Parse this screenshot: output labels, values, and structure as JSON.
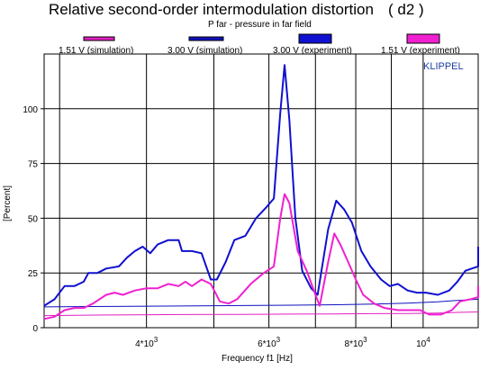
{
  "chart_data": {
    "type": "line",
    "title": "Relative second-order intermodulation distortion",
    "title_tag": "( d2 )",
    "subtitle": "P far - pressure in far field",
    "brand": "KLIPPEL",
    "xlabel": "Frequency f1  [Hz]",
    "ylabel": "[Percent]",
    "x_scale": "log",
    "xlim": [
      2850,
      12000
    ],
    "ylim": [
      0,
      125
    ],
    "grid": true,
    "legend_position": "top",
    "y_ticks": [
      {
        "value": 0,
        "label": "0"
      },
      {
        "value": 25,
        "label": "25"
      },
      {
        "value": 50,
        "label": "50"
      },
      {
        "value": 75,
        "label": "75"
      },
      {
        "value": 100,
        "label": "100"
      }
    ],
    "x_ticks": [
      {
        "value": 4000,
        "label_base": "4*10",
        "label_exp": "3"
      },
      {
        "value": 6000,
        "label_base": "6*10",
        "label_exp": "3"
      },
      {
        "value": 8000,
        "label_base": "8*10",
        "label_exp": "3"
      },
      {
        "value": 10000,
        "label_base": "10",
        "label_exp": "4"
      }
    ],
    "x_gridlines": [
      3000,
      4000,
      5000,
      6000,
      7000,
      8000,
      9000,
      10000
    ],
    "series": [
      {
        "name": "1.51 V  (simulation)",
        "color": "#e020c0",
        "style": "thin",
        "points": [
          [
            2850,
            5.5
          ],
          [
            3500,
            5.8
          ],
          [
            4500,
            6.0
          ],
          [
            5500,
            6.1
          ],
          [
            6500,
            6.2
          ],
          [
            7500,
            6.3
          ],
          [
            8500,
            6.4
          ],
          [
            9500,
            6.5
          ],
          [
            10500,
            6.7
          ],
          [
            11000,
            6.9
          ],
          [
            12000,
            7.2
          ]
        ]
      },
      {
        "name": "3.00 V  (simulation)",
        "color": "#1010c0",
        "style": "thin",
        "points": [
          [
            2850,
            9.5
          ],
          [
            3500,
            9.7
          ],
          [
            4500,
            9.9
          ],
          [
            5500,
            10.1
          ],
          [
            6500,
            10.3
          ],
          [
            7500,
            10.5
          ],
          [
            8500,
            10.8
          ],
          [
            9500,
            11.2
          ],
          [
            10500,
            11.8
          ],
          [
            11000,
            12.3
          ],
          [
            12000,
            13.0
          ]
        ]
      },
      {
        "name": "3.00 V  (experiment)",
        "color": "#1010d0",
        "style": "thick",
        "points": [
          [
            2850,
            10
          ],
          [
            2950,
            13
          ],
          [
            3050,
            19
          ],
          [
            3150,
            19
          ],
          [
            3250,
            21
          ],
          [
            3300,
            25
          ],
          [
            3400,
            25
          ],
          [
            3500,
            27
          ],
          [
            3650,
            28
          ],
          [
            3750,
            32
          ],
          [
            3850,
            35
          ],
          [
            3950,
            37
          ],
          [
            4050,
            34
          ],
          [
            4150,
            38
          ],
          [
            4300,
            40
          ],
          [
            4450,
            40
          ],
          [
            4500,
            35
          ],
          [
            4650,
            35
          ],
          [
            4800,
            34
          ],
          [
            4950,
            22
          ],
          [
            5050,
            22
          ],
          [
            5200,
            30
          ],
          [
            5350,
            40
          ],
          [
            5550,
            42
          ],
          [
            5750,
            50
          ],
          [
            5950,
            55
          ],
          [
            6100,
            59
          ],
          [
            6230,
            98
          ],
          [
            6320,
            120
          ],
          [
            6420,
            95
          ],
          [
            6550,
            50
          ],
          [
            6700,
            26
          ],
          [
            6900,
            18
          ],
          [
            7050,
            15
          ],
          [
            7300,
            45
          ],
          [
            7500,
            58
          ],
          [
            7700,
            54
          ],
          [
            7900,
            48
          ],
          [
            8150,
            35
          ],
          [
            8400,
            28
          ],
          [
            8700,
            22
          ],
          [
            8950,
            19
          ],
          [
            9200,
            20
          ],
          [
            9500,
            17
          ],
          [
            9800,
            16
          ],
          [
            10100,
            16
          ],
          [
            10500,
            15
          ],
          [
            10900,
            17
          ],
          [
            11200,
            21
          ],
          [
            11500,
            26
          ],
          [
            11750,
            27
          ],
          [
            12000,
            28
          ],
          [
            12300,
            32
          ],
          [
            12600,
            37
          ]
        ]
      },
      {
        "name": "1.51 V  (experiment)",
        "color": "#f020d0",
        "style": "thick",
        "points": [
          [
            2850,
            4
          ],
          [
            2950,
            5
          ],
          [
            3050,
            8
          ],
          [
            3150,
            9
          ],
          [
            3250,
            9
          ],
          [
            3350,
            11
          ],
          [
            3500,
            15
          ],
          [
            3600,
            16
          ],
          [
            3700,
            15
          ],
          [
            3850,
            17
          ],
          [
            4000,
            18
          ],
          [
            4150,
            18
          ],
          [
            4300,
            20
          ],
          [
            4450,
            19
          ],
          [
            4550,
            21
          ],
          [
            4650,
            19
          ],
          [
            4800,
            22
          ],
          [
            4950,
            20
          ],
          [
            5100,
            12
          ],
          [
            5250,
            11
          ],
          [
            5400,
            13
          ],
          [
            5650,
            20
          ],
          [
            5900,
            25
          ],
          [
            6100,
            28
          ],
          [
            6230,
            50
          ],
          [
            6320,
            61
          ],
          [
            6420,
            57
          ],
          [
            6600,
            35
          ],
          [
            6800,
            26
          ],
          [
            7000,
            15
          ],
          [
            7100,
            10
          ],
          [
            7300,
            30
          ],
          [
            7450,
            43
          ],
          [
            7600,
            38
          ],
          [
            7800,
            30
          ],
          [
            8000,
            22
          ],
          [
            8200,
            15
          ],
          [
            8500,
            11
          ],
          [
            8800,
            9
          ],
          [
            9200,
            8
          ],
          [
            9600,
            8
          ],
          [
            9900,
            8
          ],
          [
            10200,
            6
          ],
          [
            10600,
            6
          ],
          [
            11000,
            8
          ],
          [
            11300,
            12
          ],
          [
            11700,
            13
          ],
          [
            12000,
            14
          ],
          [
            12300,
            16
          ],
          [
            12600,
            19
          ]
        ]
      }
    ]
  }
}
